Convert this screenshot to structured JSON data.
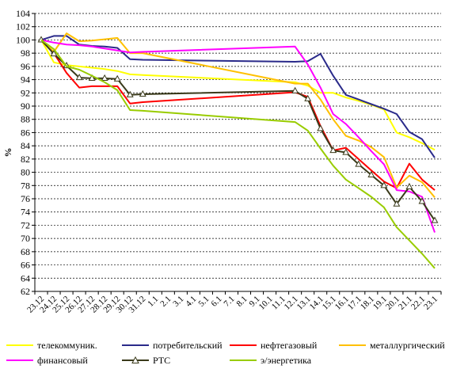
{
  "chart_data": {
    "type": "line",
    "title": "",
    "xlabel": "",
    "ylabel": "%",
    "ylim": [
      62,
      104
    ],
    "ytick_step": 2,
    "grid": "horizontal-dashed",
    "legend_position": "bottom",
    "x": [
      "23.12",
      "24.12",
      "25.12",
      "26.12",
      "27.12",
      "28.12",
      "29.12",
      "30.12",
      "31.12",
      "1.1",
      "2.1",
      "3.1",
      "4.1",
      "5.1",
      "6.1",
      "7.1",
      "8.1",
      "9.1",
      "10.1",
      "11.1",
      "12.1",
      "13.1",
      "14.1",
      "15.1",
      "16.1",
      "17.1",
      "18.1",
      "19.1",
      "20.1",
      "21.1",
      "22.1",
      "23.1"
    ],
    "series": [
      {
        "name": "телекоммуник.",
        "color": "#ffff00",
        "marker": "none",
        "values": [
          100,
          96.6,
          96.2,
          96.0,
          95.8,
          95.6,
          95.3,
          94.8,
          94.7,
          null,
          null,
          null,
          null,
          null,
          null,
          null,
          null,
          null,
          null,
          null,
          93.6,
          93.1,
          92.0,
          92.0,
          91.3,
          90.8,
          90.2,
          89.5,
          86.0,
          85.3,
          84.4,
          83.4
        ]
      },
      {
        "name": "потребительский",
        "color": "#2a2a8a",
        "marker": "none",
        "values": [
          100,
          100.6,
          100.6,
          99.3,
          99.1,
          99.0,
          98.8,
          97.1,
          97.0,
          null,
          null,
          null,
          null,
          null,
          null,
          null,
          null,
          null,
          null,
          null,
          96.7,
          96.8,
          97.9,
          94.6,
          91.7,
          91.0,
          90.3,
          89.6,
          88.8,
          86.1,
          85.0,
          82.2
        ]
      },
      {
        "name": "нефтегазовый",
        "color": "#ff0000",
        "marker": "none",
        "values": [
          100,
          98.0,
          95.0,
          92.8,
          93.0,
          93.0,
          93.0,
          90.4,
          90.6,
          null,
          null,
          null,
          null,
          null,
          null,
          null,
          null,
          null,
          null,
          null,
          92.1,
          91.4,
          87.0,
          83.3,
          83.7,
          82.0,
          80.3,
          78.6,
          77.6,
          81.3,
          78.9,
          77.3
        ]
      },
      {
        "name": "металлургический",
        "color": "#ffc000",
        "marker": "none",
        "values": [
          100,
          98.2,
          101.0,
          99.8,
          99.9,
          100.1,
          100.3,
          98.0,
          98.0,
          null,
          null,
          null,
          null,
          null,
          null,
          null,
          null,
          null,
          null,
          null,
          93.4,
          93.4,
          91.0,
          88.0,
          85.5,
          84.8,
          83.8,
          82.3,
          77.7,
          79.5,
          78.5,
          76.2
        ]
      },
      {
        "name": "финансовый",
        "color": "#ff00ff",
        "marker": "none",
        "values": [
          100,
          99.6,
          99.3,
          99.2,
          99.0,
          98.7,
          98.4,
          98.1,
          98.2,
          null,
          null,
          null,
          null,
          null,
          null,
          null,
          null,
          null,
          null,
          null,
          99.0,
          96.3,
          92.8,
          88.8,
          87.3,
          85.3,
          83.2,
          81.2,
          77.3,
          77.1,
          76.3,
          70.9
        ]
      },
      {
        "name": "РТС",
        "color": "#3a3a1a",
        "marker": "triangle",
        "values": [
          100,
          97.9,
          96.1,
          94.3,
          94.2,
          94.2,
          94.1,
          91.7,
          91.8,
          null,
          null,
          null,
          null,
          null,
          null,
          null,
          null,
          null,
          null,
          null,
          92.3,
          91.1,
          86.6,
          83.3,
          83.0,
          81.2,
          79.6,
          78.0,
          75.2,
          77.8,
          75.6,
          72.7
        ]
      },
      {
        "name": "э/энергетика",
        "color": "#99cc00",
        "marker": "none",
        "values": [
          100,
          98.6,
          96.0,
          95.5,
          94.6,
          93.6,
          92.4,
          89.4,
          89.3,
          null,
          null,
          null,
          null,
          null,
          null,
          null,
          null,
          null,
          null,
          null,
          87.6,
          86.3,
          83.6,
          81.0,
          78.9,
          77.6,
          76.3,
          74.7,
          71.7,
          69.7,
          67.7,
          65.5
        ]
      }
    ]
  }
}
